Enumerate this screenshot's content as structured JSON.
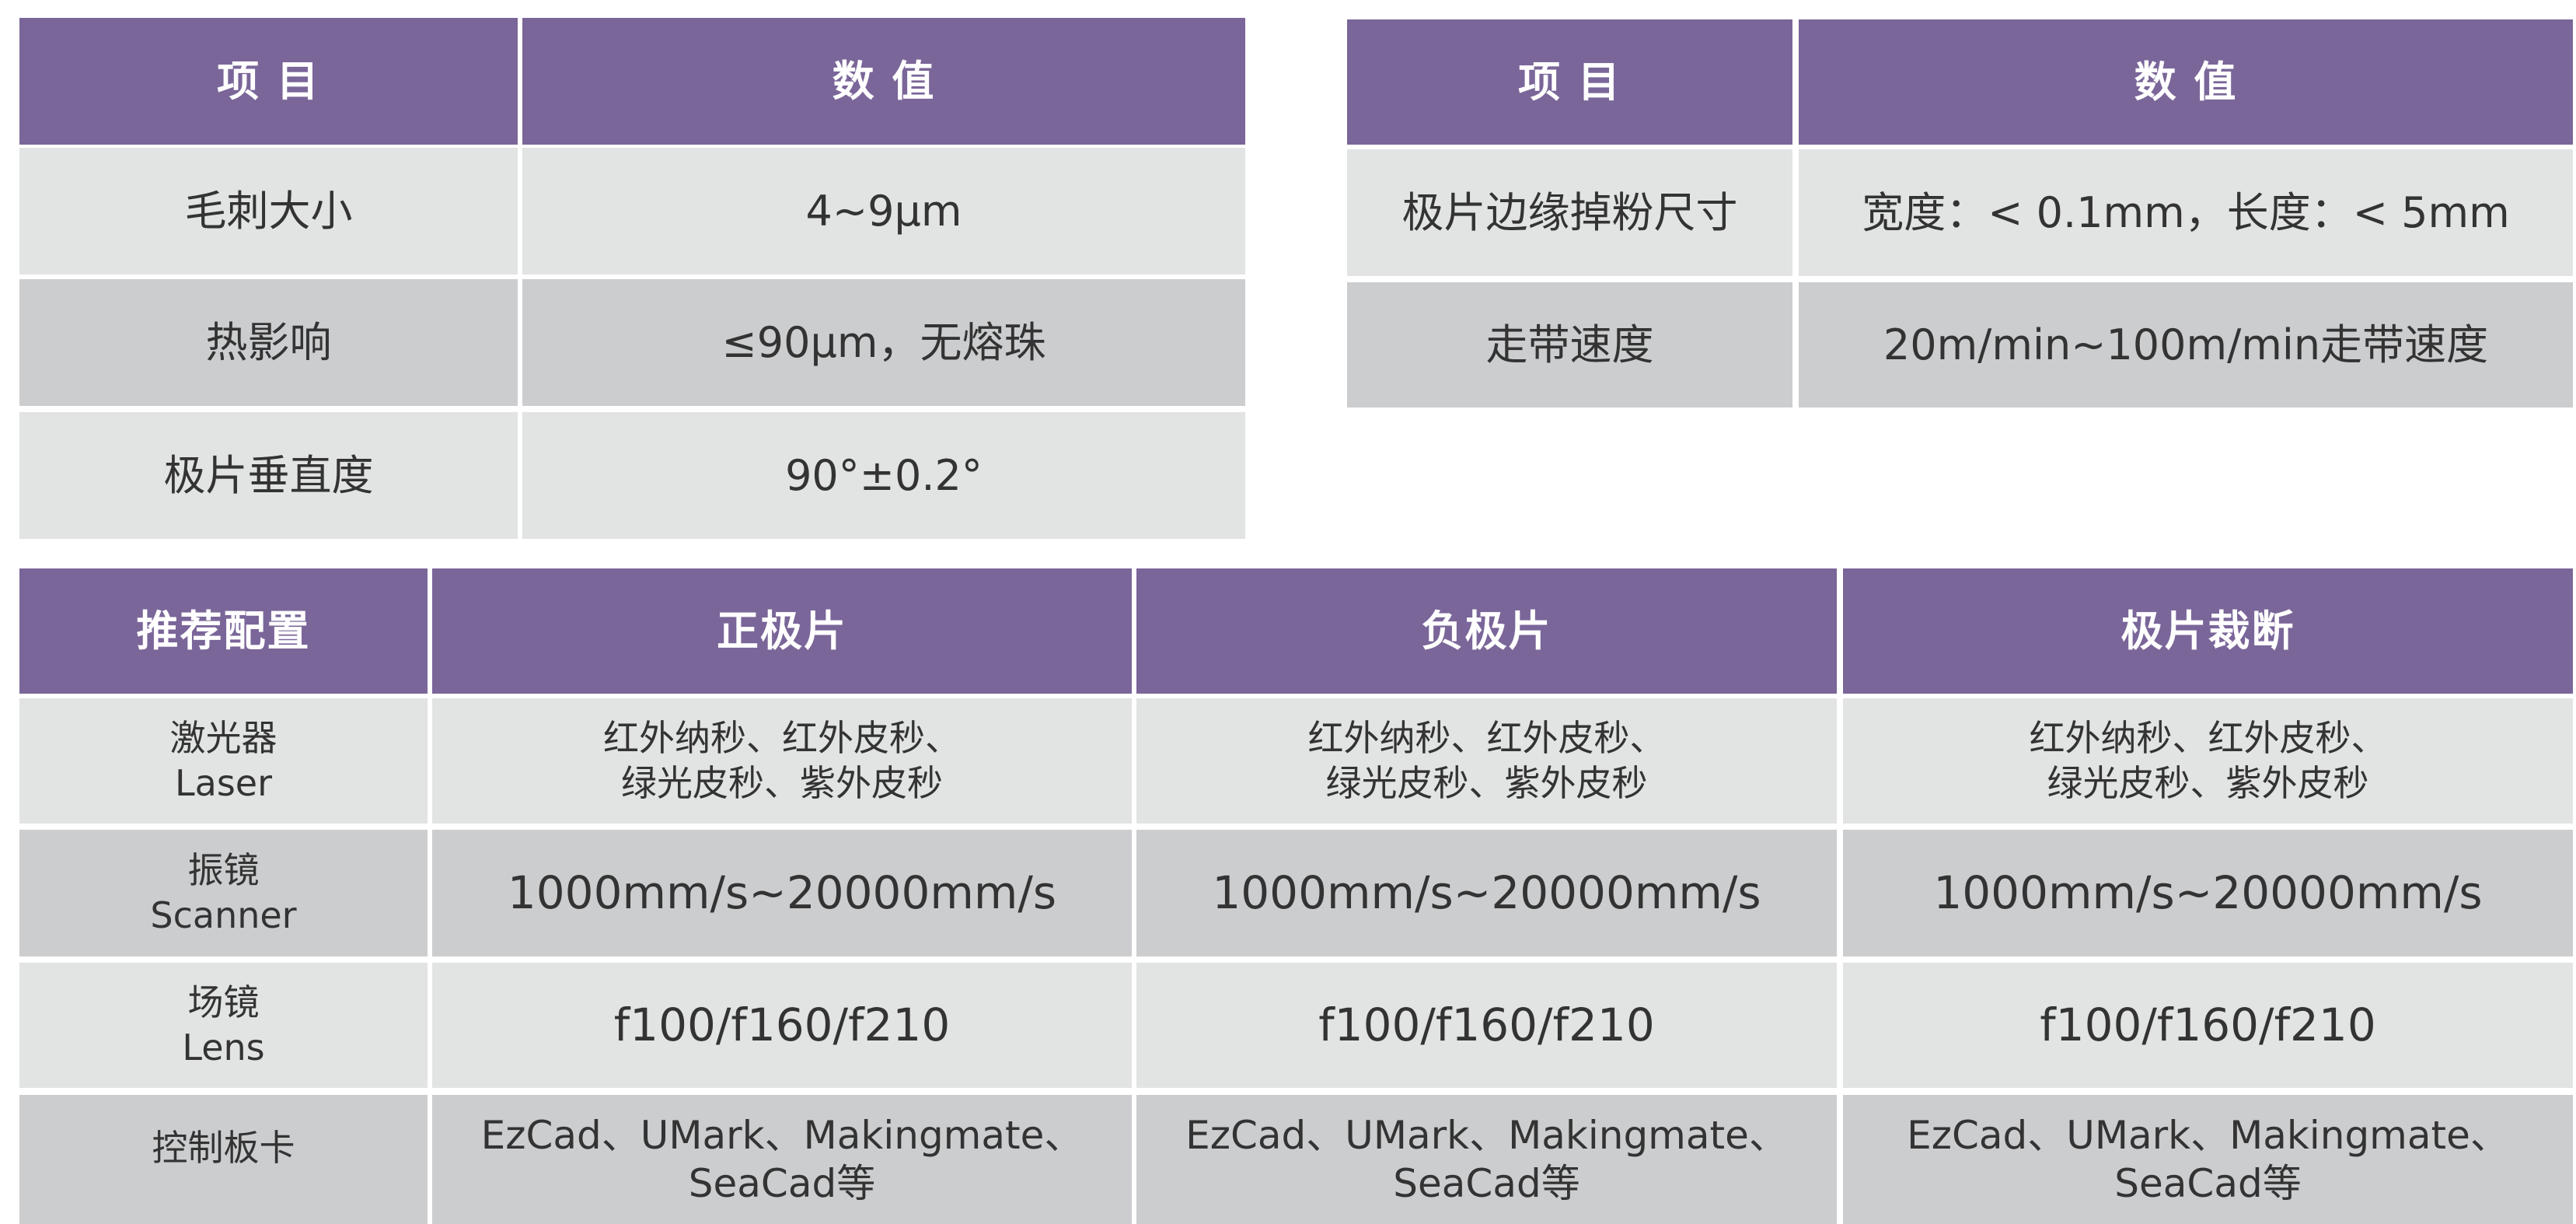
{
  "colors": {
    "header": "#7a6699",
    "row_light": "#e2e3e3",
    "row_dark": "#cccdcf"
  },
  "table1": {
    "headers": [
      "项  目",
      "数  值"
    ],
    "rows": [
      [
        "毛刺大小",
        "4~9μm"
      ],
      [
        "热影响",
        "≤90μm，无熔珠"
      ],
      [
        "极片垂直度",
        "90°±0.2°"
      ]
    ]
  },
  "table2": {
    "headers": [
      "项  目",
      "数  值"
    ],
    "rows": [
      [
        "极片边缘掉粉尺寸",
        "宽度：< 0.1mm，长度：< 5mm"
      ],
      [
        "走带速度",
        "20m/min~100m/min走带速度"
      ]
    ]
  },
  "table3": {
    "headers": [
      "推荐配置",
      "正极片",
      "负极片",
      "极片裁断"
    ],
    "rows": [
      {
        "label_cn": "激光器",
        "label_en": "Laser",
        "values": [
          [
            "红外纳秒、红外皮秒、",
            "绿光皮秒、紫外皮秒"
          ],
          [
            "红外纳秒、红外皮秒、",
            "绿光皮秒、紫外皮秒"
          ],
          [
            "红外纳秒、红外皮秒、",
            "绿光皮秒、紫外皮秒"
          ]
        ]
      },
      {
        "label_cn": "振镜",
        "label_en": "Scanner",
        "values": [
          "1000mm/s~20000mm/s",
          "1000mm/s~20000mm/s",
          "1000mm/s~20000mm/s"
        ]
      },
      {
        "label_cn": "场镜",
        "label_en": "Lens",
        "values": [
          "f100/f160/f210",
          "f100/f160/f210",
          "f100/f160/f210"
        ]
      },
      {
        "label_cn": "控制板卡",
        "values": [
          [
            "EzCad、UMark、Makingmate、",
            "SeaCad等"
          ],
          [
            "EzCad、UMark、Makingmate、",
            "SeaCad等"
          ],
          [
            "EzCad、UMark、Makingmate、",
            "SeaCad等"
          ]
        ]
      }
    ]
  }
}
